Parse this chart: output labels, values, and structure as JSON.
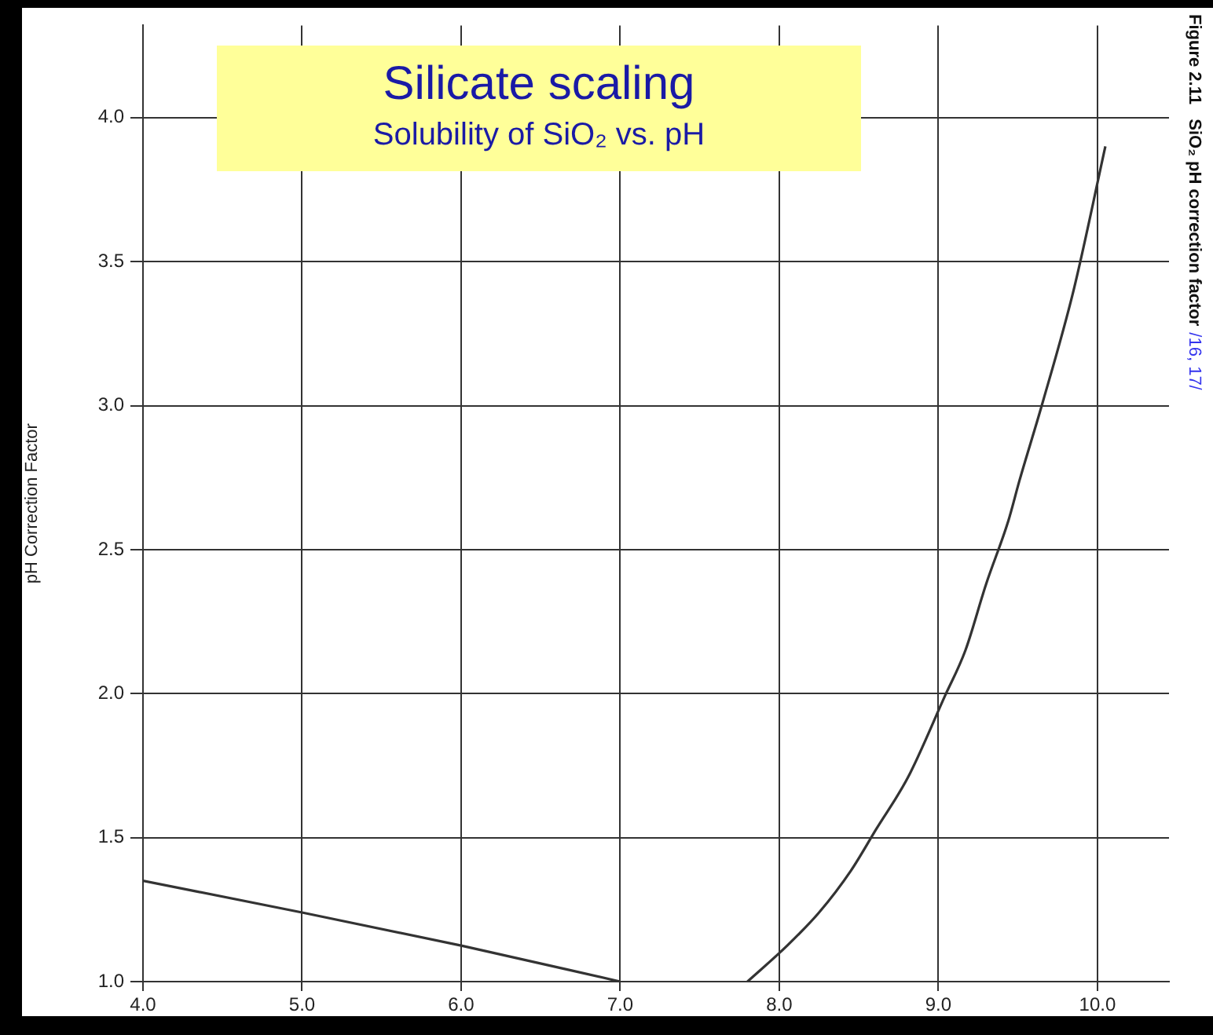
{
  "chart_data": {
    "type": "line",
    "title": "Silicate scaling",
    "subtitle": "Solubility of SiO₂ vs. pH",
    "ylabel": "pH Correction Factor",
    "annotations": [
      "Figure 2.11   SiO₂ pH correction factor",
      "/16, 17/"
    ],
    "xlim": [
      4,
      10.45
    ],
    "ylim": [
      1,
      4.32
    ],
    "xticks": [
      {
        "value": 4,
        "label": "4.0"
      },
      {
        "value": 5,
        "label": "5.0"
      },
      {
        "value": 6,
        "label": "6.0"
      },
      {
        "value": 7,
        "label": "7.0"
      },
      {
        "value": 8,
        "label": "8.0"
      },
      {
        "value": 9,
        "label": "9.0"
      },
      {
        "value": 10,
        "label": "10.0"
      }
    ],
    "yticks": [
      {
        "value": 1,
        "label": "1.0"
      },
      {
        "value": 1.5,
        "label": "1.5"
      },
      {
        "value": 2,
        "label": "2.0"
      },
      {
        "value": 2.5,
        "label": "2.5"
      },
      {
        "value": 3,
        "label": "3.0"
      },
      {
        "value": 3.5,
        "label": "3.5"
      },
      {
        "value": 4,
        "label": "4.0"
      }
    ],
    "grid": true,
    "legend": false,
    "marker": "none",
    "line_style": "solid",
    "series": [
      {
        "color": "#333333",
        "x": [
          4,
          5,
          6,
          7
        ],
        "values": [
          1.35,
          1.24,
          1.125,
          1.0
        ]
      },
      {
        "color": "#333333",
        "x": [
          7.8,
          8.05,
          8.25,
          8.45,
          8.61,
          8.81,
          9.04,
          9.17,
          9.3,
          9.44,
          9.51,
          9.65,
          9.85,
          10.05
        ],
        "values": [
          1.0,
          1.125,
          1.24,
          1.385,
          1.53,
          1.71,
          1.99,
          2.15,
          2.38,
          2.6,
          2.74,
          3.0,
          3.4,
          3.9
        ]
      }
    ]
  }
}
